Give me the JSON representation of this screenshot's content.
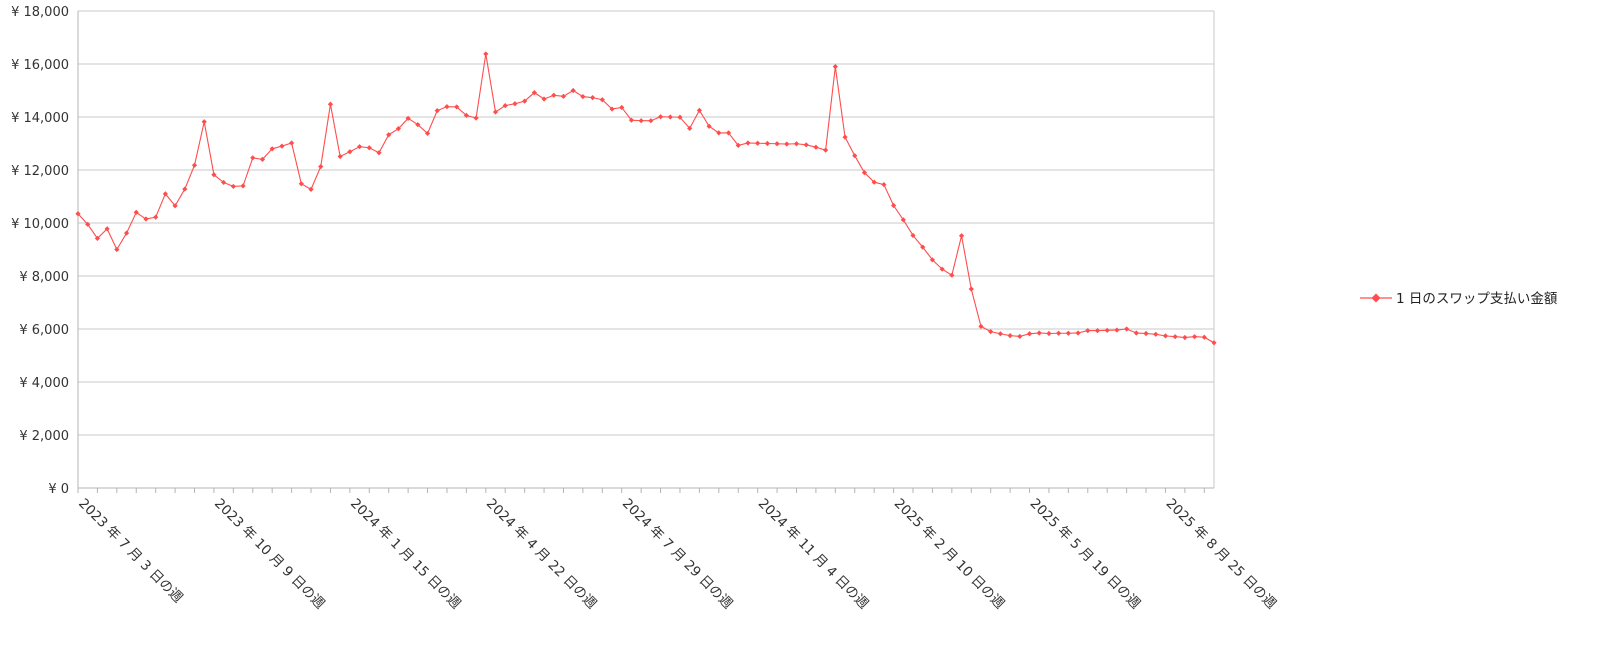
{
  "chart_data": {
    "type": "line",
    "title": "",
    "xlabel": "",
    "ylabel": "",
    "ylim": [
      0,
      18000
    ],
    "y_ticks": [
      {
        "value": 0,
        "label": "¥ 0"
      },
      {
        "value": 2000,
        "label": "¥ 2,000"
      },
      {
        "value": 4000,
        "label": "¥ 4,000"
      },
      {
        "value": 6000,
        "label": "¥ 6,000"
      },
      {
        "value": 8000,
        "label": "¥ 8,000"
      },
      {
        "value": 10000,
        "label": "¥ 10,000"
      },
      {
        "value": 12000,
        "label": "¥ 12,000"
      },
      {
        "value": 14000,
        "label": "¥ 14,000"
      },
      {
        "value": 16000,
        "label": "¥ 16,000"
      },
      {
        "value": 18000,
        "label": "¥ 18,000"
      }
    ],
    "x_tick_labels": [
      {
        "index": 0,
        "label": "2023 年 7 月 3 日の週"
      },
      {
        "index": 14,
        "label": "2023 年 10 月 9 日の週"
      },
      {
        "index": 28,
        "label": "2024 年 1 月 15 日の週"
      },
      {
        "index": 42,
        "label": "2024 年 4 月 22 日の週"
      },
      {
        "index": 56,
        "label": "2024 年 7 月 29 日の週"
      },
      {
        "index": 70,
        "label": "2024 年 11 月 4 日の週"
      },
      {
        "index": 84,
        "label": "2025 年 2 月 10 日の週"
      },
      {
        "index": 98,
        "label": "2025 年 5 月 19 日の週"
      },
      {
        "index": 112,
        "label": "2025 年 8 月 25 日の週"
      }
    ],
    "grid": "horizontal",
    "legend_position": "right",
    "series": [
      {
        "name": "1 日のスワップ支払い金額",
        "color": "#ff4d4d",
        "marker": "diamond",
        "values": [
          10350,
          9950,
          9420,
          9780,
          9000,
          9620,
          10400,
          10150,
          10220,
          11100,
          10650,
          11280,
          12180,
          13820,
          11820,
          11530,
          11380,
          11400,
          12460,
          12400,
          12800,
          12900,
          13020,
          11480,
          11270,
          12130,
          14480,
          12510,
          12690,
          12880,
          12840,
          12650,
          13330,
          13560,
          13950,
          13710,
          13380,
          14240,
          14390,
          14380,
          14060,
          13960,
          16380,
          14190,
          14430,
          14500,
          14600,
          14920,
          14680,
          14820,
          14780,
          15000,
          14770,
          14730,
          14650,
          14300,
          14360,
          13880,
          13860,
          13860,
          14010,
          14000,
          13990,
          13570,
          14250,
          13650,
          13400,
          13400,
          12930,
          13020,
          13010,
          13000,
          12990,
          12980,
          12990,
          12950,
          12860,
          12750,
          15900,
          13240,
          12540,
          11900,
          11540,
          11450,
          10660,
          10120,
          9530,
          9090,
          8610,
          8260,
          8030,
          9520,
          7510,
          6100,
          5900,
          5820,
          5750,
          5720,
          5820,
          5850,
          5830,
          5840,
          5840,
          5850,
          5940,
          5940,
          5950,
          5960,
          6000,
          5850,
          5830,
          5800,
          5740,
          5710,
          5680,
          5710,
          5690,
          5480
        ]
      }
    ]
  }
}
